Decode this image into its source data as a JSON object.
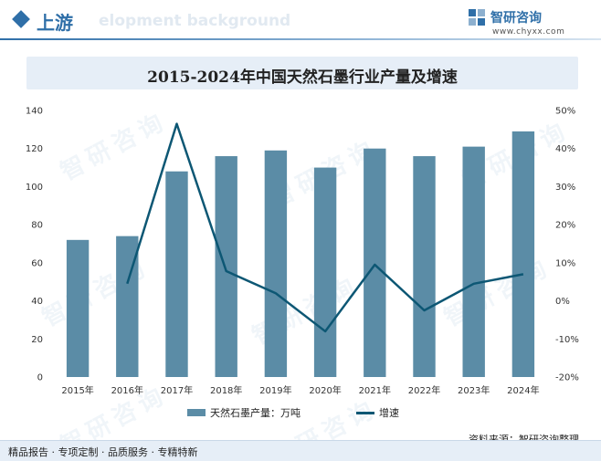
{
  "header": {
    "title": "上游",
    "background_text": "elopment background",
    "brand_name": "智研咨询",
    "brand_url": "www.chyxx.com",
    "accent_color": "#2f6fa8"
  },
  "watermark_text": "智研咨询",
  "chart_data": {
    "type": "bar+line",
    "title": "2015-2024年中国天然石墨行业产量及增速",
    "categories": [
      "2015年",
      "2016年",
      "2017年",
      "2018年",
      "2019年",
      "2020年",
      "2021年",
      "2022年",
      "2023年",
      "2024年"
    ],
    "series": [
      {
        "name": "天然石墨产量：万吨",
        "type": "bar",
        "axis": "left",
        "color": "#5b8ca6",
        "values": [
          72,
          74,
          108,
          116,
          119,
          110,
          120,
          116,
          121,
          129
        ]
      },
      {
        "name": "增速",
        "type": "line",
        "axis": "right",
        "color": "#0d5774",
        "values": [
          null,
          4.5,
          46.5,
          7.8,
          2.0,
          -8.0,
          9.5,
          -2.5,
          4.5,
          7.0
        ]
      }
    ],
    "y_left": {
      "min": 0,
      "max": 140,
      "step": 20,
      "ticks": [
        "0",
        "20",
        "40",
        "60",
        "80",
        "100",
        "120",
        "140"
      ]
    },
    "y_right": {
      "min": -20,
      "max": 50,
      "step": 10,
      "ticks": [
        "-20%",
        "-10%",
        "0%",
        "10%",
        "20%",
        "30%",
        "40%",
        "50%"
      ]
    },
    "grid": false,
    "legend_position": "bottom"
  },
  "source": "资料来源：智研咨询整理",
  "footer": "精品报告 · 专项定制 · 品质服务 · 专精特新"
}
